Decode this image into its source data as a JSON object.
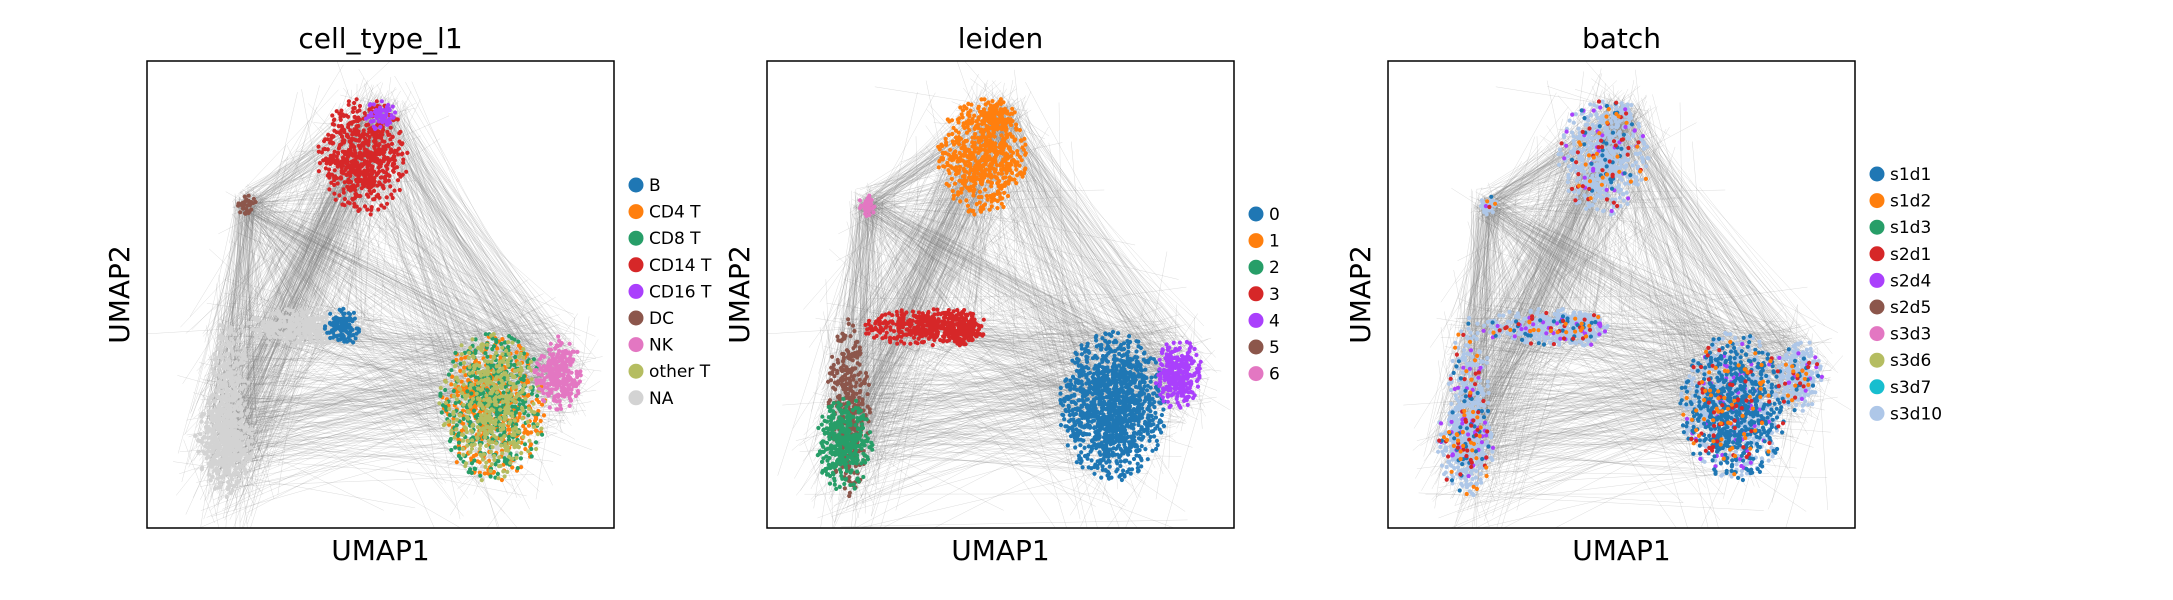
{
  "chart_data": [
    {
      "type": "scatter",
      "title": "cell_type_l1",
      "xlabel": "UMAP1",
      "ylabel": "UMAP2",
      "ticks": "none",
      "legend_position": "right",
      "legend": [
        {
          "label": "B",
          "color": "#1f77b4"
        },
        {
          "label": "CD4 T",
          "color": "#ff7f0e"
        },
        {
          "label": "CD8 T",
          "color": "#279e68"
        },
        {
          "label": "CD14 T",
          "color": "#d62728"
        },
        {
          "label": "CD16 T",
          "color": "#aa40fc"
        },
        {
          "label": "DC",
          "color": "#8c564b"
        },
        {
          "label": "NK",
          "color": "#e377c2"
        },
        {
          "label": "other T",
          "color": "#b5bd61"
        },
        {
          "label": "NA",
          "color": "#d3d3d3"
        }
      ]
    },
    {
      "type": "scatter",
      "title": "leiden",
      "xlabel": "UMAP1",
      "ylabel": "UMAP2",
      "ticks": "none",
      "legend_position": "right",
      "legend": [
        {
          "label": "0",
          "color": "#1f77b4"
        },
        {
          "label": "1",
          "color": "#ff7f0e"
        },
        {
          "label": "2",
          "color": "#279e68"
        },
        {
          "label": "3",
          "color": "#d62728"
        },
        {
          "label": "4",
          "color": "#aa40fc"
        },
        {
          "label": "5",
          "color": "#8c564b"
        },
        {
          "label": "6",
          "color": "#e377c2"
        }
      ]
    },
    {
      "type": "scatter",
      "title": "batch",
      "xlabel": "UMAP1",
      "ylabel": "UMAP2",
      "ticks": "none",
      "legend_position": "right",
      "legend": [
        {
          "label": "s1d1",
          "color": "#1f77b4"
        },
        {
          "label": "s1d2",
          "color": "#ff7f0e"
        },
        {
          "label": "s1d3",
          "color": "#279e68"
        },
        {
          "label": "s2d1",
          "color": "#d62728"
        },
        {
          "label": "s2d4",
          "color": "#aa40fc"
        },
        {
          "label": "s2d5",
          "color": "#8c564b"
        },
        {
          "label": "s3d3",
          "color": "#e377c2"
        },
        {
          "label": "s3d6",
          "color": "#b5bd61"
        },
        {
          "label": "s3d7",
          "color": "#17becf"
        },
        {
          "label": "s3d10",
          "color": "#aec7e8"
        }
      ]
    }
  ],
  "edge_color": "#808080"
}
